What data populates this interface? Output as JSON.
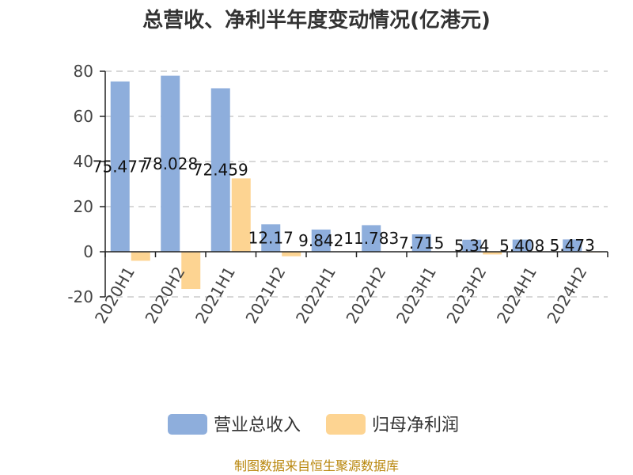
{
  "chart_data": {
    "type": "bar",
    "title": "总营收、净利半年度变动情况(亿港元)",
    "categories": [
      "2020H1",
      "2020H2",
      "2021H1",
      "2021H2",
      "2022H1",
      "2022H2",
      "2023H1",
      "2023H2",
      "2024H1",
      "2024H2"
    ],
    "series": [
      {
        "name": "营业总收入",
        "color": "#8eaedc",
        "values": [
          75.477,
          78.028,
          72.459,
          12.17,
          9.842,
          11.783,
          7.715,
          5.34,
          5.408,
          5.473
        ],
        "labels": [
          "75.477",
          "78.028",
          "72.459",
          "12.17",
          "9.842",
          "11.783",
          "7.715",
          "5.34",
          "5.408",
          "5.473"
        ]
      },
      {
        "name": "归母净利润",
        "color": "#fdd492",
        "values": [
          -4,
          -16.5,
          32.5,
          -2.0,
          0,
          0,
          0,
          -1.2,
          0,
          -0.3
        ]
      }
    ],
    "ylim": [
      -20,
      80
    ],
    "yticks": [
      -20,
      0,
      20,
      40,
      60,
      80
    ],
    "xlabel": "",
    "ylabel": "",
    "grid": true,
    "legend_position": "bottom"
  },
  "footer": {
    "source": "制图数据来自恒生聚源数据库"
  }
}
